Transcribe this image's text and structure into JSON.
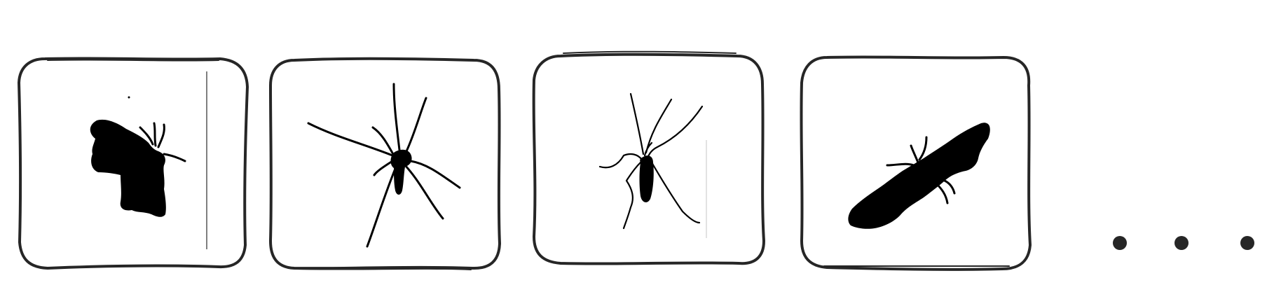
{
  "diagram": {
    "description_free": true,
    "tiles": [
      {
        "icon": "moth-silhouette-icon"
      },
      {
        "icon": "spider-silhouette-icon"
      },
      {
        "icon": "crane-fly-silhouette-icon"
      },
      {
        "icon": "moth-flying-silhouette-icon"
      }
    ],
    "continuation": {
      "icon": "ellipsis-icon"
    },
    "colors": {
      "frame": "#262626",
      "silhouette": "#000000",
      "background": "#ffffff"
    }
  }
}
